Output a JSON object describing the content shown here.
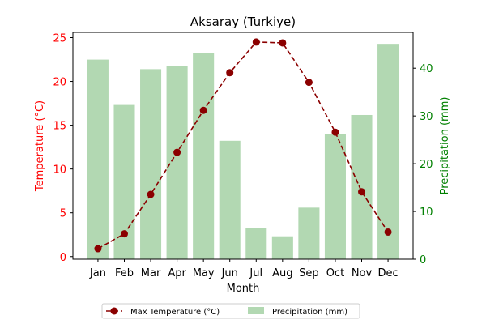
{
  "chart_data": {
    "type": "bar+line",
    "title": "Aksaray (Turkiye)",
    "xlabel": "Month",
    "categories": [
      "Jan",
      "Feb",
      "Mar",
      "Apr",
      "May",
      "Jun",
      "Jul",
      "Aug",
      "Sep",
      "Oct",
      "Nov",
      "Dec"
    ],
    "left_axis": {
      "label": "Temperature (°C)",
      "color": "#ff0000",
      "ylim": [
        -0.3,
        25.6
      ],
      "ticks": [
        0,
        5,
        10,
        15,
        20,
        25
      ]
    },
    "right_axis": {
      "label": "Precipitation (mm)",
      "color": "#008000",
      "ylim": [
        0,
        47.5
      ],
      "ticks": [
        0,
        10,
        20,
        30,
        40
      ]
    },
    "series": [
      {
        "name": "Max Temperature (°C)",
        "kind": "line",
        "axis": "left",
        "color": "#8b0000",
        "style": "dashed",
        "marker": "circle",
        "values": [
          0.9,
          2.6,
          7.1,
          11.9,
          16.7,
          21.0,
          24.5,
          24.4,
          19.9,
          14.2,
          7.4,
          2.8
        ]
      },
      {
        "name": "Precipitation (mm)",
        "kind": "bar",
        "axis": "right",
        "color": "#b2d8b2",
        "values": [
          41.8,
          32.3,
          39.8,
          40.5,
          43.2,
          24.8,
          6.5,
          4.8,
          10.8,
          26.2,
          30.2,
          45.1
        ]
      }
    ],
    "legend_position": "bottom-center",
    "grid": false
  }
}
